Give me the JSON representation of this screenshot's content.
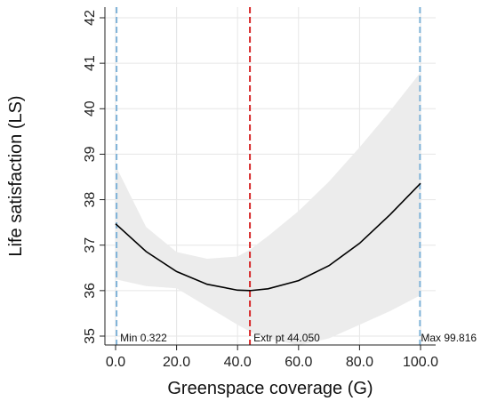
{
  "chart_data": {
    "type": "line",
    "xlabel": "Greenspace coverage (G)",
    "ylabel": "Life satisfaction (LS)",
    "xlim": [
      0,
      100
    ],
    "ylim": [
      35,
      42
    ],
    "x_ticks": [
      "0.0",
      "20.0",
      "40.0",
      "60.0",
      "80.0",
      "100.0"
    ],
    "y_ticks": [
      "35",
      "36",
      "37",
      "38",
      "39",
      "40",
      "41",
      "42"
    ],
    "grid": true,
    "curve": {
      "x": [
        0,
        10,
        20,
        30,
        40,
        44.05,
        50,
        60,
        70,
        80,
        90,
        100
      ],
      "y": [
        37.47,
        36.86,
        36.42,
        36.14,
        36.01,
        36.0,
        36.04,
        36.22,
        36.55,
        37.04,
        37.67,
        38.36
      ]
    },
    "ci_band": {
      "x": [
        0,
        10,
        20,
        30,
        40,
        44.05,
        50,
        60,
        70,
        80,
        90,
        100
      ],
      "upper": [
        38.75,
        37.4,
        36.85,
        36.7,
        36.75,
        36.9,
        37.2,
        37.75,
        38.4,
        39.15,
        39.95,
        40.8
      ],
      "lower": [
        36.25,
        36.1,
        36.05,
        35.65,
        35.25,
        35.1,
        34.95,
        34.8,
        34.95,
        35.25,
        35.55,
        35.9
      ]
    },
    "reference_lines": [
      {
        "x": 0.322,
        "label": "Min  0.322",
        "color": "#7fb3d8",
        "style": "dashed"
      },
      {
        "x": 44.05,
        "label": "Extr pt 44.050",
        "color": "#d62728",
        "style": "dashed"
      },
      {
        "x": 99.816,
        "label": "Max 99.816",
        "color": "#7fb3d8",
        "style": "dashed"
      }
    ],
    "colors": {
      "curve": "#000000",
      "band": "#ececec",
      "grid": "#e6e6e6",
      "axis": "#222222"
    }
  }
}
